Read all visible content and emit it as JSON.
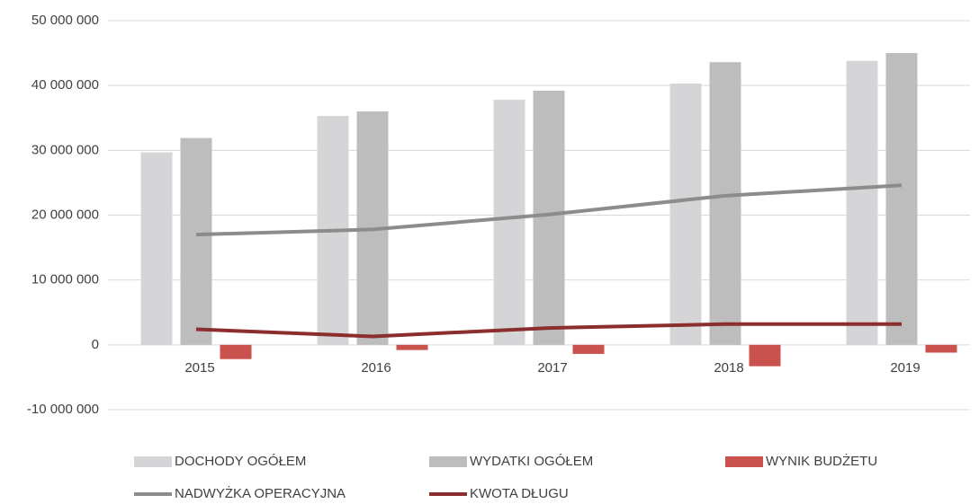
{
  "chart_data": {
    "type": "bar",
    "categories": [
      "2015",
      "2016",
      "2017",
      "2018",
      "2019"
    ],
    "series": [
      {
        "name": "DOCHODY OGÓŁEM",
        "type": "bar",
        "color": "#d5d5d7",
        "values": [
          29700000,
          35300000,
          37800000,
          40300000,
          43800000
        ]
      },
      {
        "name": "WYDATKI OGÓŁEM",
        "type": "bar",
        "color": "#bdbdbd",
        "values": [
          31900000,
          36000000,
          39200000,
          43600000,
          45000000
        ]
      },
      {
        "name": "WYNIK BUDŻETU",
        "type": "bar",
        "color": "#c9514e",
        "values": [
          -2200000,
          -800000,
          -1400000,
          -3300000,
          -1200000
        ]
      },
      {
        "name": "NADWYŻKA OPERACYJNA",
        "type": "line",
        "color": "#8c8c8c",
        "values": [
          17000000,
          17800000,
          20100000,
          23000000,
          24600000
        ]
      },
      {
        "name": "KWOTA DŁUGU",
        "type": "line",
        "color": "#8b2e2e",
        "values": [
          2400000,
          1300000,
          2600000,
          3200000,
          3200000
        ]
      }
    ],
    "ylim": [
      -10000000,
      50000000
    ],
    "yticks": [
      {
        "value": -10000000,
        "label": "-10 000 000"
      },
      0,
      {
        "value": 10000000,
        "label": "10 000 000"
      },
      {
        "value": 20000000,
        "label": "20 000 000"
      },
      {
        "value": 30000000,
        "label": "30 000 000"
      },
      {
        "value": 40000000,
        "label": "40 000 000"
      },
      {
        "value": 50000000,
        "label": "50 000 000"
      }
    ],
    "grid": true
  }
}
